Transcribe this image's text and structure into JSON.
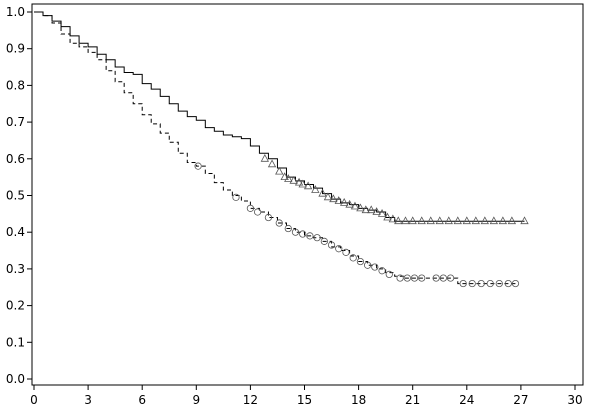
{
  "chart_data": {
    "type": "line",
    "title": "",
    "xlabel": "",
    "ylabel": "",
    "xlim": [
      0,
      30
    ],
    "ylim": [
      0,
      1.0
    ],
    "x_ticks": [
      "0",
      "3",
      "6",
      "9",
      "12",
      "15",
      "18",
      "21",
      "24",
      "27",
      "30"
    ],
    "y_ticks": [
      "0.0",
      "0.1",
      "0.2",
      "0.3",
      "0.4",
      "0.5",
      "0.6",
      "0.7",
      "0.8",
      "0.9",
      "1.0"
    ],
    "grid": false,
    "legend": "none",
    "series": [
      {
        "line_style": "solid",
        "censor_marker": "triangle",
        "color": "#000000",
        "points": [
          [
            0,
            1.0
          ],
          [
            0.5,
            0.99
          ],
          [
            1,
            0.975
          ],
          [
            1.5,
            0.96
          ],
          [
            2,
            0.935
          ],
          [
            2.5,
            0.915
          ],
          [
            3,
            0.905
          ],
          [
            3.5,
            0.885
          ],
          [
            4,
            0.87
          ],
          [
            4.5,
            0.85
          ],
          [
            5,
            0.835
          ],
          [
            5.5,
            0.83
          ],
          [
            6,
            0.805
          ],
          [
            6.5,
            0.79
          ],
          [
            7,
            0.77
          ],
          [
            7.5,
            0.75
          ],
          [
            8,
            0.73
          ],
          [
            8.5,
            0.715
          ],
          [
            9,
            0.705
          ],
          [
            9.5,
            0.685
          ],
          [
            10,
            0.675
          ],
          [
            10.5,
            0.665
          ],
          [
            11,
            0.66
          ],
          [
            11.5,
            0.655
          ],
          [
            12,
            0.635
          ],
          [
            12.5,
            0.615
          ],
          [
            13,
            0.6
          ],
          [
            13.5,
            0.575
          ],
          [
            14,
            0.55
          ],
          [
            14.5,
            0.54
          ],
          [
            15,
            0.53
          ],
          [
            15.5,
            0.52
          ],
          [
            16,
            0.505
          ],
          [
            16.5,
            0.49
          ],
          [
            17,
            0.48
          ],
          [
            17.5,
            0.475
          ],
          [
            18,
            0.465
          ],
          [
            18.5,
            0.46
          ],
          [
            19,
            0.455
          ],
          [
            19.5,
            0.44
          ],
          [
            20,
            0.43
          ],
          [
            27.2,
            0.43
          ]
        ],
        "censored": [
          [
            12.8,
            0.6
          ],
          [
            13.2,
            0.585
          ],
          [
            13.6,
            0.565
          ],
          [
            13.9,
            0.55
          ],
          [
            14.1,
            0.545
          ],
          [
            14.4,
            0.54
          ],
          [
            14.7,
            0.535
          ],
          [
            14.9,
            0.53
          ],
          [
            15.2,
            0.525
          ],
          [
            15.6,
            0.515
          ],
          [
            16.0,
            0.505
          ],
          [
            16.3,
            0.495
          ],
          [
            16.6,
            0.49
          ],
          [
            16.9,
            0.485
          ],
          [
            17.2,
            0.48
          ],
          [
            17.5,
            0.475
          ],
          [
            17.8,
            0.47
          ],
          [
            18.1,
            0.465
          ],
          [
            18.4,
            0.46
          ],
          [
            18.7,
            0.46
          ],
          [
            19.0,
            0.455
          ],
          [
            19.3,
            0.45
          ],
          [
            19.6,
            0.44
          ],
          [
            19.9,
            0.435
          ],
          [
            20.2,
            0.43
          ],
          [
            20.6,
            0.43
          ],
          [
            21.0,
            0.43
          ],
          [
            21.5,
            0.43
          ],
          [
            22.0,
            0.43
          ],
          [
            22.5,
            0.43
          ],
          [
            23.0,
            0.43
          ],
          [
            23.5,
            0.43
          ],
          [
            24.0,
            0.43
          ],
          [
            24.5,
            0.43
          ],
          [
            25.0,
            0.43
          ],
          [
            25.5,
            0.43
          ],
          [
            26.0,
            0.43
          ],
          [
            26.5,
            0.43
          ],
          [
            27.2,
            0.43
          ]
        ]
      },
      {
        "line_style": "dashed",
        "censor_marker": "circle",
        "color": "#000000",
        "points": [
          [
            0,
            1.0
          ],
          [
            0.5,
            0.99
          ],
          [
            1,
            0.97
          ],
          [
            1.5,
            0.94
          ],
          [
            2,
            0.915
          ],
          [
            2.5,
            0.905
          ],
          [
            3,
            0.89
          ],
          [
            3.5,
            0.87
          ],
          [
            4,
            0.84
          ],
          [
            4.5,
            0.81
          ],
          [
            5,
            0.78
          ],
          [
            5.5,
            0.75
          ],
          [
            6,
            0.72
          ],
          [
            6.5,
            0.695
          ],
          [
            7,
            0.67
          ],
          [
            7.5,
            0.645
          ],
          [
            8,
            0.615
          ],
          [
            8.5,
            0.59
          ],
          [
            9,
            0.58
          ],
          [
            9.5,
            0.56
          ],
          [
            10,
            0.535
          ],
          [
            10.5,
            0.515
          ],
          [
            11,
            0.5
          ],
          [
            11.5,
            0.485
          ],
          [
            12,
            0.465
          ],
          [
            12.5,
            0.455
          ],
          [
            13,
            0.44
          ],
          [
            13.5,
            0.425
          ],
          [
            14,
            0.41
          ],
          [
            14.5,
            0.4
          ],
          [
            15,
            0.39
          ],
          [
            15.5,
            0.385
          ],
          [
            16,
            0.375
          ],
          [
            16.5,
            0.36
          ],
          [
            17,
            0.35
          ],
          [
            17.5,
            0.335
          ],
          [
            18,
            0.32
          ],
          [
            18.5,
            0.31
          ],
          [
            19,
            0.3
          ],
          [
            19.5,
            0.29
          ],
          [
            20,
            0.28
          ],
          [
            20.5,
            0.275
          ],
          [
            23.2,
            0.275
          ],
          [
            23.5,
            0.26
          ],
          [
            26.8,
            0.26
          ]
        ],
        "censored": [
          [
            9.1,
            0.58
          ],
          [
            11.2,
            0.495
          ],
          [
            12.0,
            0.465
          ],
          [
            12.4,
            0.455
          ],
          [
            13.0,
            0.44
          ],
          [
            13.6,
            0.425
          ],
          [
            14.1,
            0.41
          ],
          [
            14.5,
            0.4
          ],
          [
            14.9,
            0.395
          ],
          [
            15.3,
            0.39
          ],
          [
            15.7,
            0.385
          ],
          [
            16.1,
            0.375
          ],
          [
            16.5,
            0.365
          ],
          [
            16.9,
            0.355
          ],
          [
            17.3,
            0.345
          ],
          [
            17.7,
            0.33
          ],
          [
            18.1,
            0.32
          ],
          [
            18.5,
            0.31
          ],
          [
            18.9,
            0.305
          ],
          [
            19.3,
            0.295
          ],
          [
            19.7,
            0.285
          ],
          [
            20.3,
            0.275
          ],
          [
            20.7,
            0.275
          ],
          [
            21.1,
            0.275
          ],
          [
            21.5,
            0.275
          ],
          [
            22.3,
            0.275
          ],
          [
            22.7,
            0.275
          ],
          [
            23.1,
            0.275
          ],
          [
            23.8,
            0.26
          ],
          [
            24.3,
            0.26
          ],
          [
            24.8,
            0.26
          ],
          [
            25.3,
            0.26
          ],
          [
            25.8,
            0.26
          ],
          [
            26.3,
            0.26
          ],
          [
            26.7,
            0.26
          ]
        ]
      }
    ]
  }
}
